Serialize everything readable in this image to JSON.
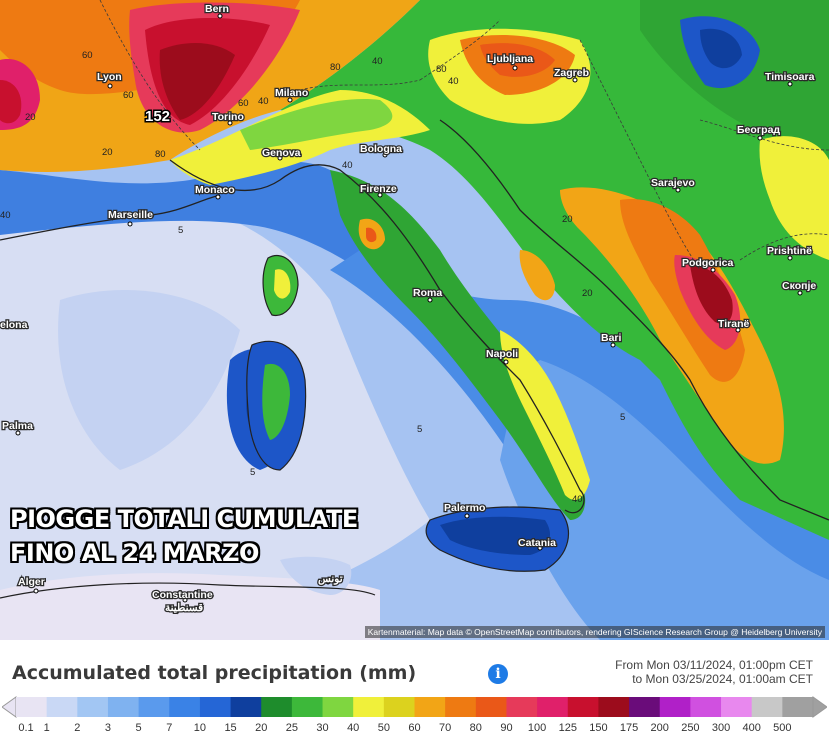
{
  "headline": {
    "line1": "PIOGGE TOTALI CUMULATE",
    "line2": "FINO AL 24 MARZO"
  },
  "map": {
    "max_label": "152",
    "cities": [
      "Bern",
      "Lyon",
      "Milano",
      "Torino",
      "Genova",
      "Bologna",
      "Monaco",
      "Marseille",
      "Firenze",
      "Ljubljana",
      "Zagreb",
      "Timisoara",
      "Београд",
      "Sarajevo",
      "Podgorica",
      "Prishtinë",
      "Скопје",
      "Tiranë",
      "Roma",
      "Napoli",
      "Bari",
      "Palermo",
      "Catania",
      "Palma",
      "Alger",
      "Constantine",
      "قسنطينة",
      "تونس",
      "elona"
    ],
    "isolines": [
      "60",
      "60",
      "40",
      "80",
      "20",
      "80",
      "60",
      "40",
      "40",
      "20",
      "40",
      "80",
      "40",
      "20",
      "5",
      "5",
      "5",
      "5",
      "40",
      "20"
    ]
  },
  "attribution": "Kartenmaterial: Map data © OpenStreetMap contributors, rendering GIScience Research Group @ Heidelberg University",
  "legend": {
    "title": "Accumulated total precipitation (mm)",
    "info_icon": "info-icon",
    "from": "From Mon 03/11/2024, 01:00pm CET",
    "to": "to Mon 03/25/2024, 01:00am CET",
    "ticks": [
      "0.1",
      "1",
      "2",
      "3",
      "5",
      "7",
      "10",
      "15",
      "20",
      "25",
      "30",
      "40",
      "50",
      "60",
      "70",
      "80",
      "90",
      "100",
      "125",
      "150",
      "175",
      "200",
      "250",
      "300",
      "400",
      "500"
    ],
    "colors": [
      "#e8e4f3",
      "#c9d8f5",
      "#a2c6f3",
      "#7fb2f0",
      "#5a9aed",
      "#3a82e6",
      "#2566d6",
      "#0f3f9e",
      "#1e8c2c",
      "#3db83a",
      "#7fd640",
      "#f0f03a",
      "#dcd21e",
      "#f2a516",
      "#ee7a12",
      "#ea5818",
      "#e63a5a",
      "#e0206a",
      "#c8102e",
      "#9c0c1c",
      "#6a0c7a",
      "#b020c8",
      "#d050e0",
      "#e888ee",
      "#c8c8c8",
      "#a0a0a0"
    ]
  }
}
